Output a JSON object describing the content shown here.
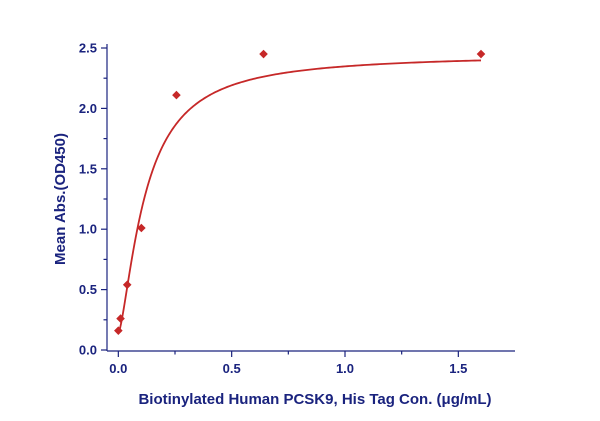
{
  "chart_data": {
    "type": "scatter",
    "title": "",
    "xlabel": "Biotinylated Human PCSK9, His Tag Con. (μg/mL)",
    "ylabel": "Mean Abs.(OD450)",
    "xlim": [
      -0.05,
      1.75
    ],
    "ylim": [
      0,
      2.5
    ],
    "x_ticks": [
      "0.0",
      "0.5",
      "1.0",
      "1.5"
    ],
    "y_ticks": [
      "0.0",
      "0.5",
      "1.0",
      "1.5",
      "2.0",
      "2.5"
    ],
    "grid": false,
    "legend": "none",
    "series": [
      {
        "x": [
          0.0,
          0.0098,
          0.0391,
          0.1016,
          0.2563,
          0.6406,
          1.6
        ],
        "y": [
          0.16,
          0.26,
          0.54,
          1.01,
          2.11,
          2.45,
          2.45
        ]
      }
    ],
    "fit": {
      "model": "four-parameter-logistic",
      "bottom": 0.14,
      "top": 2.45,
      "ec50": 0.12,
      "hill": 1.45
    },
    "colors": {
      "axis": "#1a237e",
      "series": "#c62828"
    }
  }
}
